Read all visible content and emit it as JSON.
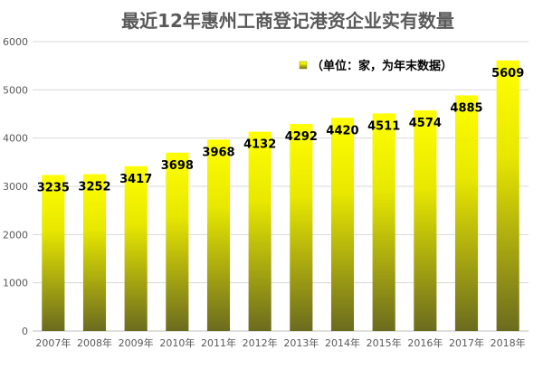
{
  "chart_data": {
    "type": "bar",
    "title": "最近12年惠州工商登记港资企业实有数量",
    "categories": [
      "2007年",
      "2008年",
      "2009年",
      "2010年",
      "2011年",
      "2012年",
      "2013年",
      "2014年",
      "2015年",
      "2016年",
      "2017年",
      "2018年"
    ],
    "series": [
      {
        "name": "（单位：家，为年末数据）",
        "values": [
          3235,
          3252,
          3417,
          3698,
          3968,
          4132,
          4292,
          4420,
          4511,
          4574,
          4885,
          5609
        ]
      }
    ],
    "ylim": [
      0,
      6000
    ],
    "yticks": [
      "0",
      "1000",
      "2000",
      "3000",
      "4000",
      "5000",
      "6000"
    ],
    "ytick_values": [
      0,
      1000,
      2000,
      3000,
      4000,
      5000,
      6000
    ],
    "grid": true,
    "legend_position": "top-right",
    "colors": {
      "bar_top": "#ffff00",
      "bar_bottom": "#6b6b1f",
      "grid": "#d9d9d9",
      "text": "#595959"
    }
  }
}
